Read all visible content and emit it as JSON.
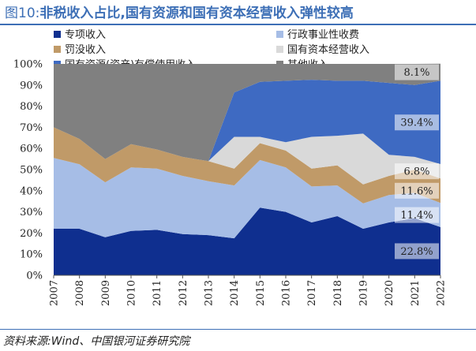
{
  "figure": {
    "prefix": "图10:",
    "title": "非税收入占比,国有资源和国有资本经营收入弹性较高",
    "source": "资料来源:Wind、中国银河证券研究院"
  },
  "chart_data": {
    "type": "area",
    "stacked": true,
    "x": [
      "2007",
      "2008",
      "2009",
      "2010",
      "2011",
      "2012",
      "2013",
      "2014",
      "2015",
      "2016",
      "2017",
      "2018",
      "2019",
      "2020",
      "2021",
      "2022"
    ],
    "yticks": [
      "0%",
      "10%",
      "20%",
      "30%",
      "40%",
      "50%",
      "60%",
      "70%",
      "80%",
      "90%",
      "100%"
    ],
    "ylim": [
      0,
      100
    ],
    "legend_placement": "top",
    "series": [
      {
        "name": "专项收入",
        "color": "#0f2f8f",
        "values": [
          22,
          22,
          18,
          21,
          21.5,
          19.5,
          19,
          17.5,
          32,
          30,
          25,
          28,
          22,
          25,
          27,
          22.8
        ]
      },
      {
        "name": "行政事业性收费",
        "color": "#a6bde6",
        "values": [
          33.5,
          30.5,
          26,
          30,
          29,
          27.5,
          25.5,
          25,
          22.5,
          21,
          17,
          14.5,
          12,
          13,
          12,
          11.4
        ]
      },
      {
        "name": "罚没收入",
        "color": "#c09a68",
        "values": [
          14.5,
          12,
          11,
          11,
          9,
          9,
          9.5,
          8,
          8,
          8,
          8.5,
          9.5,
          9,
          9,
          11,
          11.6
        ]
      },
      {
        "name": "国有资本经营收入",
        "color": "#d9d9d9",
        "values": [
          0,
          0,
          0,
          0,
          0,
          0,
          0,
          15,
          3,
          4,
          15,
          14,
          24,
          10,
          6,
          6.8
        ]
      },
      {
        "name": "国有资源(资产)有偿使用收入",
        "color": "#3e6ac2",
        "values": [
          0,
          0,
          0,
          0,
          0,
          0,
          0,
          21,
          26,
          29,
          27,
          26,
          25,
          34,
          34,
          39.4
        ]
      },
      {
        "name": "其他收入",
        "color": "#808080",
        "values": [
          30,
          35.5,
          45,
          38,
          40.5,
          44,
          46,
          13.5,
          8.5,
          8,
          7.5,
          8,
          8,
          9,
          10,
          8.1
        ]
      }
    ],
    "data_labels": [
      {
        "series": 0,
        "year": "2022",
        "text": "22.8%"
      },
      {
        "series": 1,
        "year": "2022",
        "text": "11.4%"
      },
      {
        "series": 2,
        "year": "2022",
        "text": "11.6%"
      },
      {
        "series": 3,
        "year": "2022",
        "text": "6.8%"
      },
      {
        "series": 4,
        "year": "2022",
        "text": "39.4%"
      },
      {
        "series": 5,
        "year": "2022",
        "text": "8.1%"
      }
    ]
  }
}
